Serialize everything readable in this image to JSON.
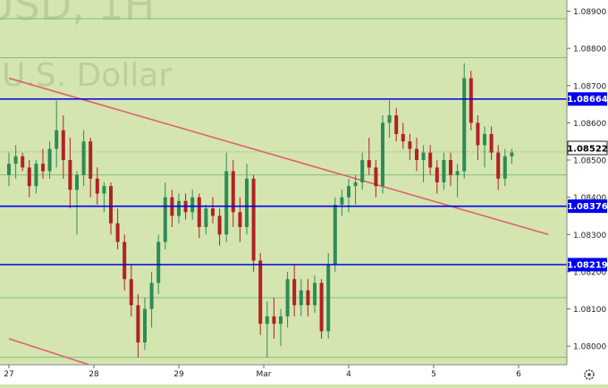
{
  "watermark": {
    "symbol": "USD, 1H",
    "name": "U.S. Dollar"
  },
  "colors": {
    "background": "#d4e5b0",
    "axis_background": "#ffffff",
    "bull": "#2e8b57",
    "bear": "#b22222",
    "level_line": "#0000ee",
    "trend_line": "#e06070",
    "grid_line": "#7fbf7f"
  },
  "chart_data": {
    "type": "candlestick",
    "title": "",
    "xlabel": "",
    "ylabel": "",
    "ylim": [
      1.0795,
      1.0893
    ],
    "x_ticks": [
      "27",
      "28",
      "29",
      "Mar",
      "4",
      "5",
      "6"
    ],
    "y_ticks": [
      "1.08900",
      "1.08800",
      "1.08700",
      "1.08600",
      "1.08500",
      "1.08400",
      "1.08300",
      "1.08200",
      "1.08100",
      "1.08000"
    ],
    "last_price": "1.08522",
    "levels": [
      {
        "label": "1.08664",
        "value": 1.08664
      },
      {
        "label": "1.08376",
        "value": 1.08376
      },
      {
        "label": "1.08219",
        "value": 1.08219
      }
    ],
    "thin_levels": [
      1.0888,
      1.08775,
      1.0846,
      1.0813,
      1.0797
    ],
    "trend_lines": [
      {
        "from": [
          0,
          1.0872
        ],
        "to": [
          6.35,
          1.083
        ]
      },
      {
        "from": [
          0,
          1.0802
        ],
        "to": [
          1.35,
          1.0792
        ]
      }
    ],
    "candles": [
      [
        0.0,
        1.0846,
        1.0852,
        1.0843,
        1.0849
      ],
      [
        0.08,
        1.0849,
        1.0854,
        1.0845,
        1.0851
      ],
      [
        0.16,
        1.0851,
        1.0852,
        1.0847,
        1.0848
      ],
      [
        0.24,
        1.0848,
        1.085,
        1.084,
        1.0843
      ],
      [
        0.32,
        1.0843,
        1.085,
        1.0841,
        1.0849
      ],
      [
        0.4,
        1.0849,
        1.0853,
        1.0845,
        1.0847
      ],
      [
        0.48,
        1.0847,
        1.0855,
        1.0845,
        1.0853
      ],
      [
        0.56,
        1.0853,
        1.0866,
        1.0848,
        1.0858
      ],
      [
        0.64,
        1.0858,
        1.0862,
        1.0845,
        1.085
      ],
      [
        0.72,
        1.085,
        1.0856,
        1.0837,
        1.0842
      ],
      [
        0.8,
        1.0842,
        1.0847,
        1.083,
        1.0846
      ],
      [
        0.88,
        1.0846,
        1.0858,
        1.0843,
        1.0855
      ],
      [
        0.96,
        1.0855,
        1.0856,
        1.084,
        1.0845
      ],
      [
        1.04,
        1.0845,
        1.0848,
        1.0838,
        1.0841
      ],
      [
        1.12,
        1.0841,
        1.0844,
        1.0836,
        1.0843
      ],
      [
        1.2,
        1.0843,
        1.0844,
        1.083,
        1.0833
      ],
      [
        1.28,
        1.0833,
        1.0837,
        1.0826,
        1.0828
      ],
      [
        1.36,
        1.0828,
        1.083,
        1.0815,
        1.0818
      ],
      [
        1.44,
        1.0818,
        1.0822,
        1.0808,
        1.0811
      ],
      [
        1.52,
        1.0811,
        1.0814,
        1.0797,
        1.0801
      ],
      [
        1.6,
        1.0801,
        1.0813,
        1.0799,
        1.081
      ],
      [
        1.68,
        1.081,
        1.082,
        1.0805,
        1.0817
      ],
      [
        1.76,
        1.0817,
        1.083,
        1.0814,
        1.0828
      ],
      [
        1.84,
        1.0828,
        1.0844,
        1.0826,
        1.084
      ],
      [
        1.92,
        1.084,
        1.0842,
        1.0832,
        1.0835
      ],
      [
        2.0,
        1.0835,
        1.0841,
        1.0833,
        1.0839
      ],
      [
        2.08,
        1.0839,
        1.0841,
        1.0834,
        1.0836
      ],
      [
        2.16,
        1.0836,
        1.0842,
        1.0834,
        1.084
      ],
      [
        2.24,
        1.084,
        1.0841,
        1.0829,
        1.0832
      ],
      [
        2.32,
        1.0832,
        1.0838,
        1.083,
        1.0837
      ],
      [
        2.4,
        1.0837,
        1.084,
        1.0833,
        1.0835
      ],
      [
        2.48,
        1.0835,
        1.0837,
        1.0827,
        1.083
      ],
      [
        2.56,
        1.083,
        1.0852,
        1.0828,
        1.0847
      ],
      [
        2.64,
        1.0847,
        1.085,
        1.0832,
        1.0836
      ],
      [
        2.72,
        1.0836,
        1.084,
        1.0828,
        1.0832
      ],
      [
        2.8,
        1.0832,
        1.0849,
        1.083,
        1.0845
      ],
      [
        2.88,
        1.0845,
        1.0846,
        1.082,
        1.0823
      ],
      [
        2.96,
        1.0823,
        1.0825,
        1.0803,
        1.0806
      ],
      [
        3.04,
        1.0806,
        1.0812,
        1.0797,
        1.0808
      ],
      [
        3.12,
        1.0808,
        1.0813,
        1.0802,
        1.0806
      ],
      [
        3.2,
        1.0806,
        1.081,
        1.08,
        1.0808
      ],
      [
        3.28,
        1.0808,
        1.082,
        1.0805,
        1.0818
      ],
      [
        3.36,
        1.0818,
        1.0822,
        1.0808,
        1.0811
      ],
      [
        3.44,
        1.0811,
        1.0818,
        1.0808,
        1.0815
      ],
      [
        3.52,
        1.0815,
        1.0818,
        1.0808,
        1.0811
      ],
      [
        3.6,
        1.0811,
        1.0819,
        1.0809,
        1.0817
      ],
      [
        3.68,
        1.0817,
        1.0818,
        1.0802,
        1.0804
      ],
      [
        3.76,
        1.0804,
        1.0825,
        1.0802,
        1.0822
      ],
      [
        3.84,
        1.0822,
        1.084,
        1.082,
        1.0838
      ],
      [
        3.92,
        1.0838,
        1.0842,
        1.0835,
        1.084
      ],
      [
        4.0,
        1.084,
        1.0845,
        1.0836,
        1.0843
      ],
      [
        4.08,
        1.0843,
        1.0846,
        1.0838,
        1.0844
      ],
      [
        4.16,
        1.0844,
        1.0852,
        1.0842,
        1.085
      ],
      [
        4.24,
        1.085,
        1.0856,
        1.0846,
        1.0848
      ],
      [
        4.32,
        1.0848,
        1.085,
        1.084,
        1.0843
      ],
      [
        4.4,
        1.0843,
        1.0862,
        1.0841,
        1.086
      ],
      [
        4.48,
        1.086,
        1.0866,
        1.0856,
        1.0862
      ],
      [
        4.56,
        1.0862,
        1.0864,
        1.0855,
        1.0857
      ],
      [
        4.64,
        1.0857,
        1.086,
        1.0853,
        1.0855
      ],
      [
        4.72,
        1.0855,
        1.0857,
        1.085,
        1.0853
      ],
      [
        4.8,
        1.0853,
        1.0856,
        1.0847,
        1.085
      ],
      [
        4.88,
        1.085,
        1.0854,
        1.0844,
        1.0852
      ],
      [
        4.96,
        1.0852,
        1.0854,
        1.0846,
        1.0848
      ],
      [
        5.04,
        1.0848,
        1.085,
        1.0841,
        1.0844
      ],
      [
        5.12,
        1.0844,
        1.0852,
        1.0842,
        1.085
      ],
      [
        5.2,
        1.085,
        1.0852,
        1.0843,
        1.0846
      ],
      [
        5.28,
        1.0846,
        1.0849,
        1.084,
        1.0847
      ],
      [
        5.36,
        1.0847,
        1.0876,
        1.0845,
        1.0872
      ],
      [
        5.44,
        1.0872,
        1.0874,
        1.0858,
        1.086
      ],
      [
        5.52,
        1.086,
        1.0862,
        1.085,
        1.0854
      ],
      [
        5.6,
        1.0854,
        1.0859,
        1.0848,
        1.0857
      ],
      [
        5.68,
        1.0857,
        1.0859,
        1.085,
        1.0852
      ],
      [
        5.76,
        1.0852,
        1.0854,
        1.0842,
        1.0845
      ],
      [
        5.84,
        1.0845,
        1.0853,
        1.0843,
        1.0851
      ],
      [
        5.92,
        1.0851,
        1.0853,
        1.0849,
        1.0852
      ]
    ]
  },
  "settings_icon": "gear-icon"
}
